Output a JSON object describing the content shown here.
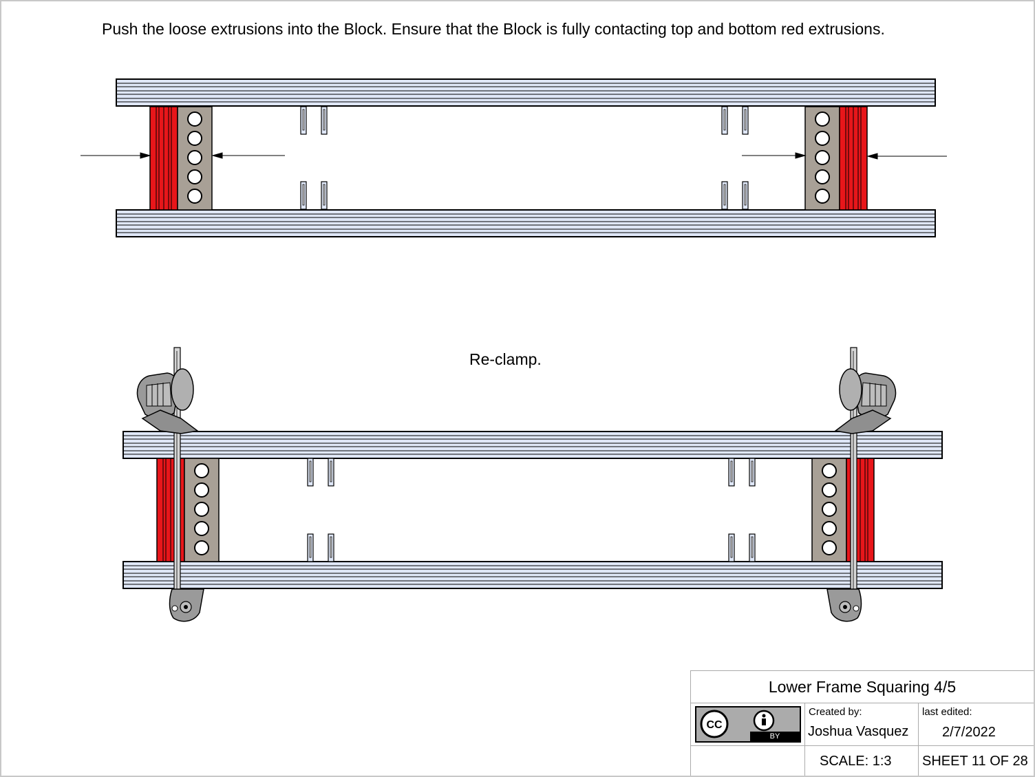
{
  "instructions": {
    "step1": "Push the loose extrusions into the Block. Ensure that the Block is fully contacting top and bottom red extrusions.",
    "step2": "Re-clamp."
  },
  "title_block": {
    "title": "Lower Frame Squaring 4/5",
    "created_by_label": "Created by:",
    "author": "Joshua Vasquez",
    "last_edited_label": "last edited:",
    "date": "2/7/2022",
    "scale": "SCALE: 1:3",
    "sheet": "SHEET 11 OF 28",
    "license_badge": {
      "cc": "CC",
      "by": "BY"
    }
  },
  "colors": {
    "extrusion": "#dfe7f7",
    "block": "#a8a096",
    "red_extrusion": "#e8161a",
    "clamp": "#8f8f8f",
    "border": "#c8c8c8"
  }
}
